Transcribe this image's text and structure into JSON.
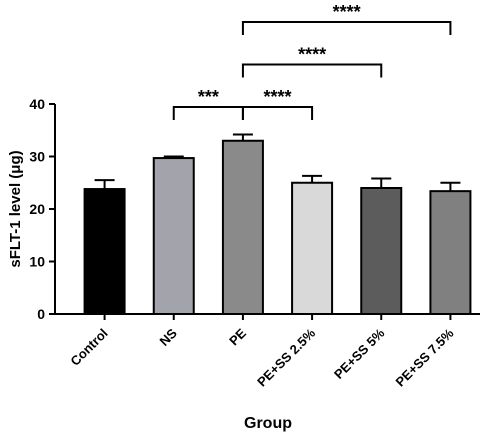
{
  "chart_data": {
    "type": "bar",
    "y_label": "sFLT-1 level (μg)",
    "x_label": "Group",
    "categories": [
      "Control",
      "NS",
      "PE",
      "PE+SS 2.5%",
      "PE+SS 5%",
      "PE+SS 7.5%"
    ],
    "values": [
      23.8,
      29.7,
      33.0,
      25.0,
      24.0,
      23.4
    ],
    "errors": [
      1.7,
      0.3,
      1.2,
      1.3,
      1.8,
      1.6
    ],
    "colors": [
      "#000000",
      "#a3a3ab",
      "#8a8a8a",
      "#d9d9d9",
      "#5c5c5c",
      "#808080"
    ],
    "ylim": [
      0,
      40
    ],
    "yticks": [
      0,
      10,
      20,
      30,
      40
    ],
    "annotations": [
      {
        "from": "NS",
        "to": "PE",
        "label": "***"
      },
      {
        "from": "PE",
        "to": "PE+SS 2.5%",
        "label": "****"
      },
      {
        "from": "PE",
        "to": "PE+SS 5%",
        "label": "****"
      },
      {
        "from": "PE",
        "to": "PE+SS 7.5%",
        "label": "****"
      }
    ]
  }
}
